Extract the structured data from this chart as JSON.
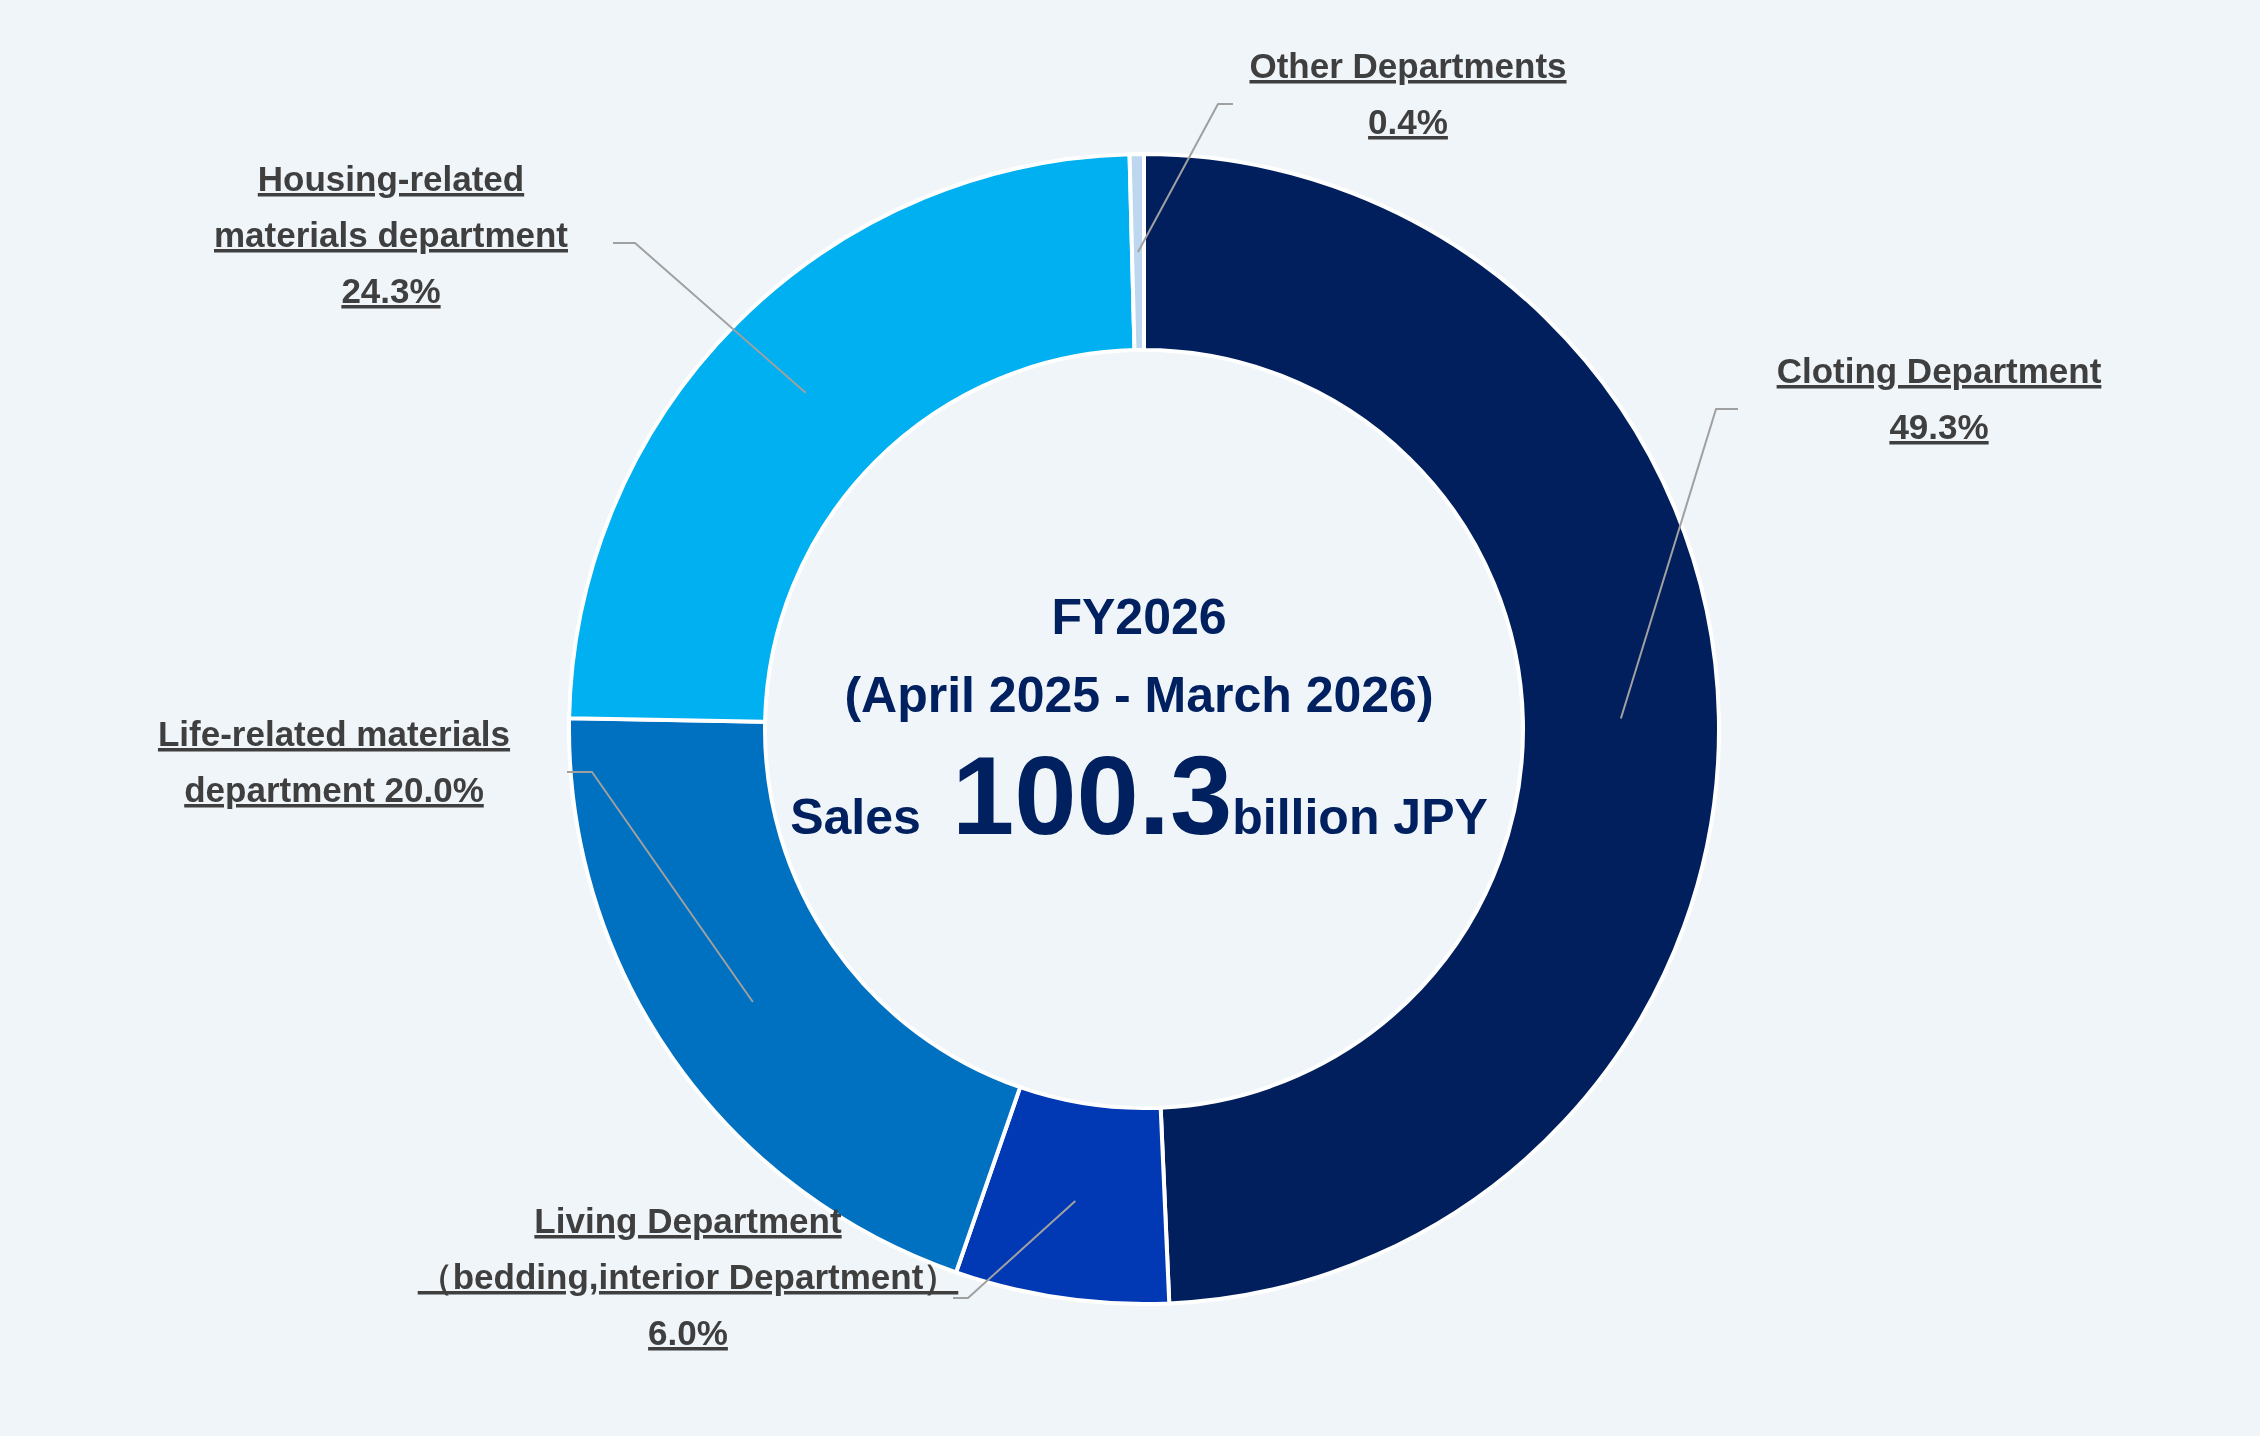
{
  "chart_data": {
    "type": "donut",
    "categories": [
      "Cloting Department",
      "Living Department（bedding,interior Department）",
      "Life-related materials department",
      "Housing-related materials department",
      "Other Departments"
    ],
    "values": [
      49.3,
      6.0,
      20.0,
      24.3,
      0.4
    ],
    "colors": [
      "#001f5c",
      "#0039b3",
      "#0070c0",
      "#00b0f0",
      "#bdd7ee"
    ],
    "value_labels": [
      "49.3%",
      "6.0%",
      "20.0%",
      "24.3%",
      "0.4%"
    ],
    "annotations": [
      "FY2026",
      "(April 2025 - March 2026)",
      "Sales 100.3billion JPY"
    ]
  }
}
